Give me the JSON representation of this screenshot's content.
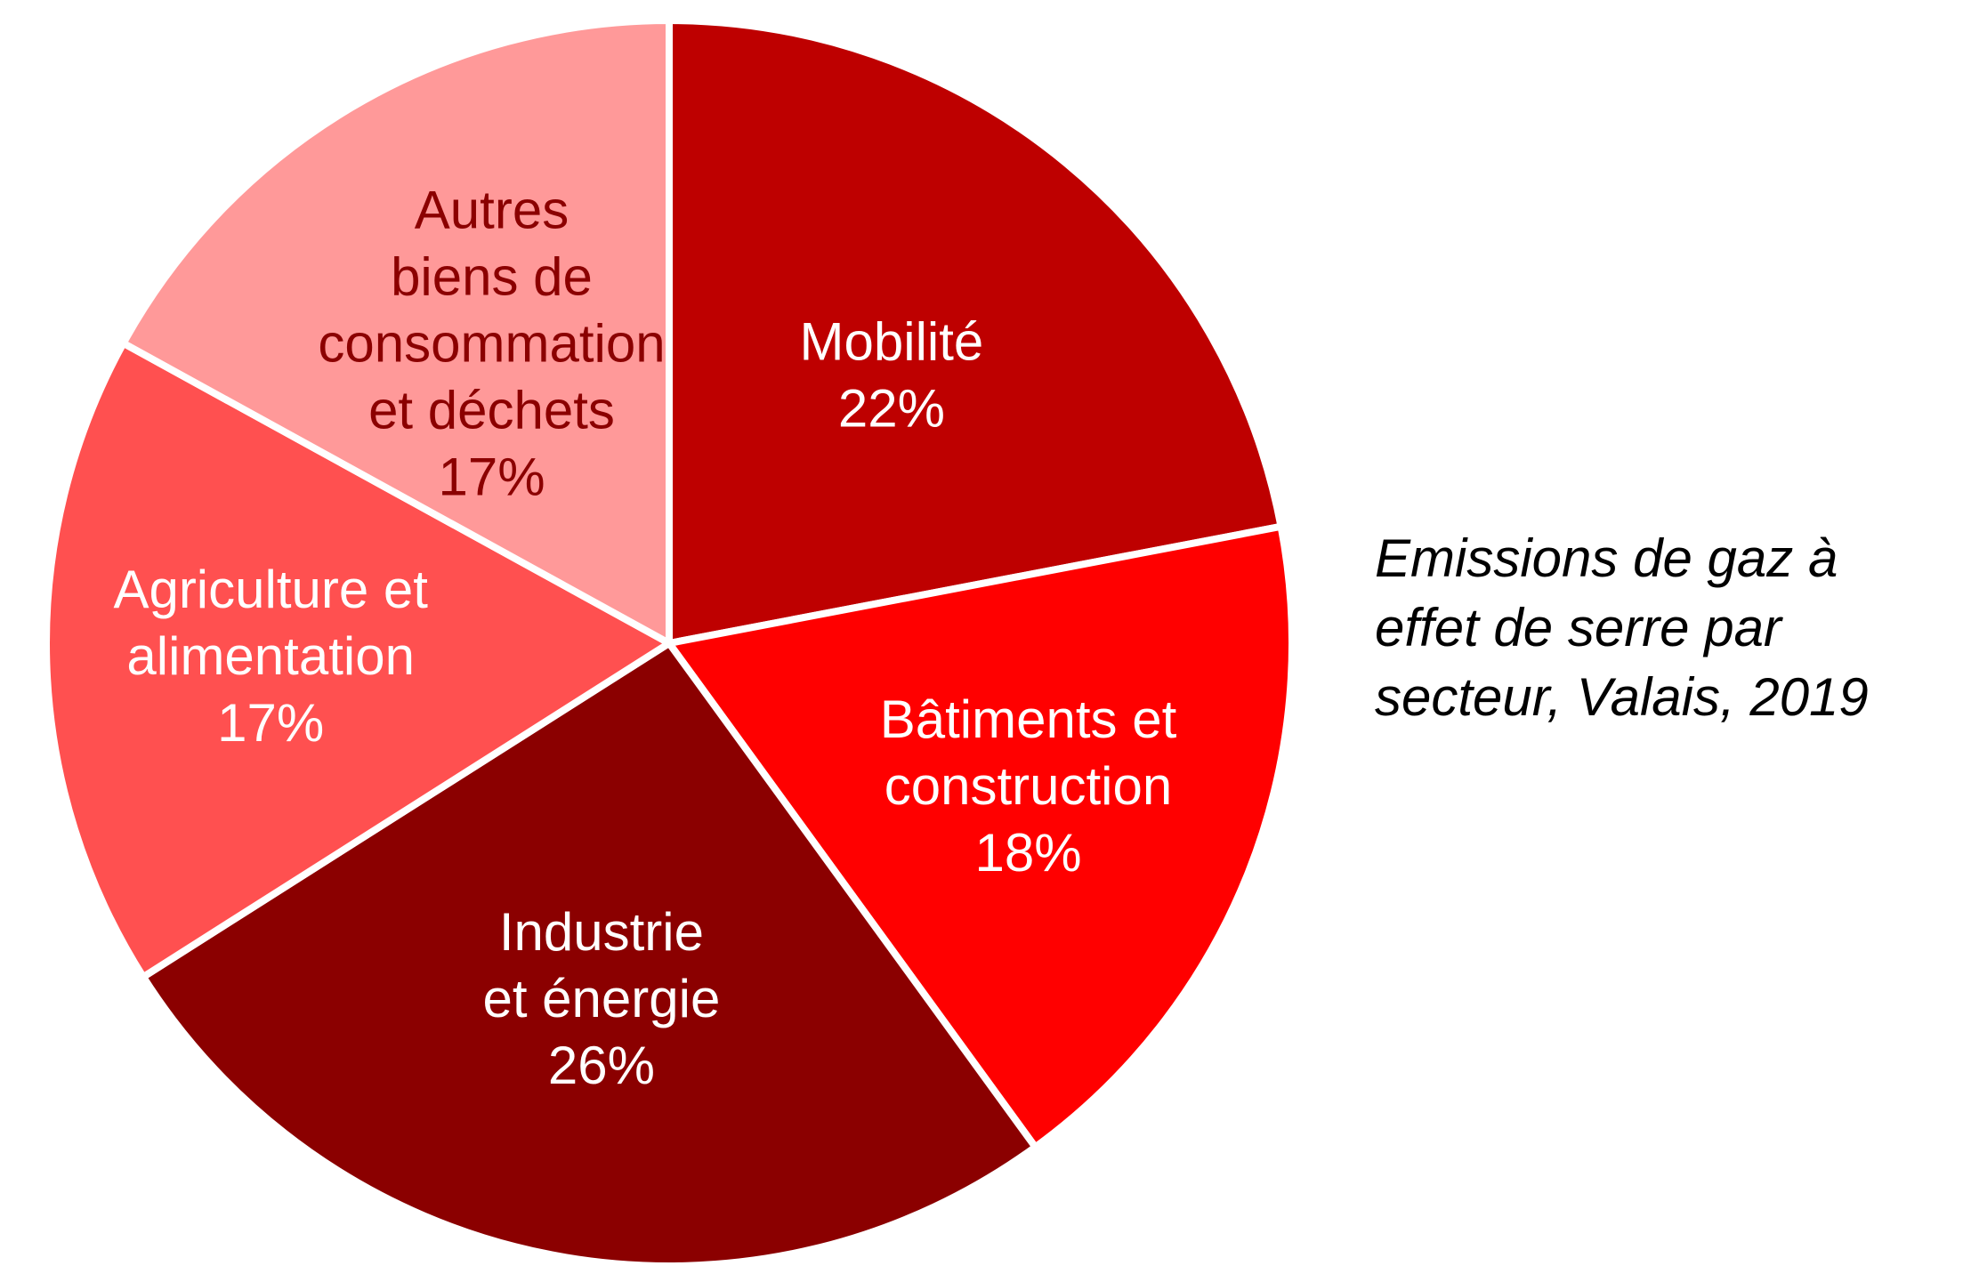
{
  "chart_data": {
    "type": "pie",
    "title_lines": [
      "Emissions de gaz à",
      "effet de serre par",
      "secteur, Valais, 2019"
    ],
    "slices": [
      {
        "label_lines": [
          "Mobilité",
          "22%"
        ],
        "label": "Mobilité",
        "value": 22,
        "color": "#BE0000",
        "label_color": "#ffffff"
      },
      {
        "label_lines": [
          "Bâtiments et",
          "construction",
          "18%"
        ],
        "label": "Bâtiments et construction",
        "value": 18,
        "color": "#FF0000",
        "label_color": "#ffffff"
      },
      {
        "label_lines": [
          "Industrie",
          "et énergie",
          "26%"
        ],
        "label": "Industrie et énergie",
        "value": 26,
        "color": "#8B0000",
        "label_color": "#ffffff"
      },
      {
        "label_lines": [
          "Agriculture et",
          "alimentation",
          "17%"
        ],
        "label": "Agriculture et alimentation",
        "value": 17,
        "color": "#FF5050",
        "label_color": "#ffffff"
      },
      {
        "label_lines": [
          "Autres",
          "biens de",
          "consommation",
          "et déchets",
          "17%"
        ],
        "label": "Autres biens de consommation et déchets",
        "value": 17,
        "color": "#FF9999",
        "label_color": "#8B0000"
      }
    ]
  }
}
